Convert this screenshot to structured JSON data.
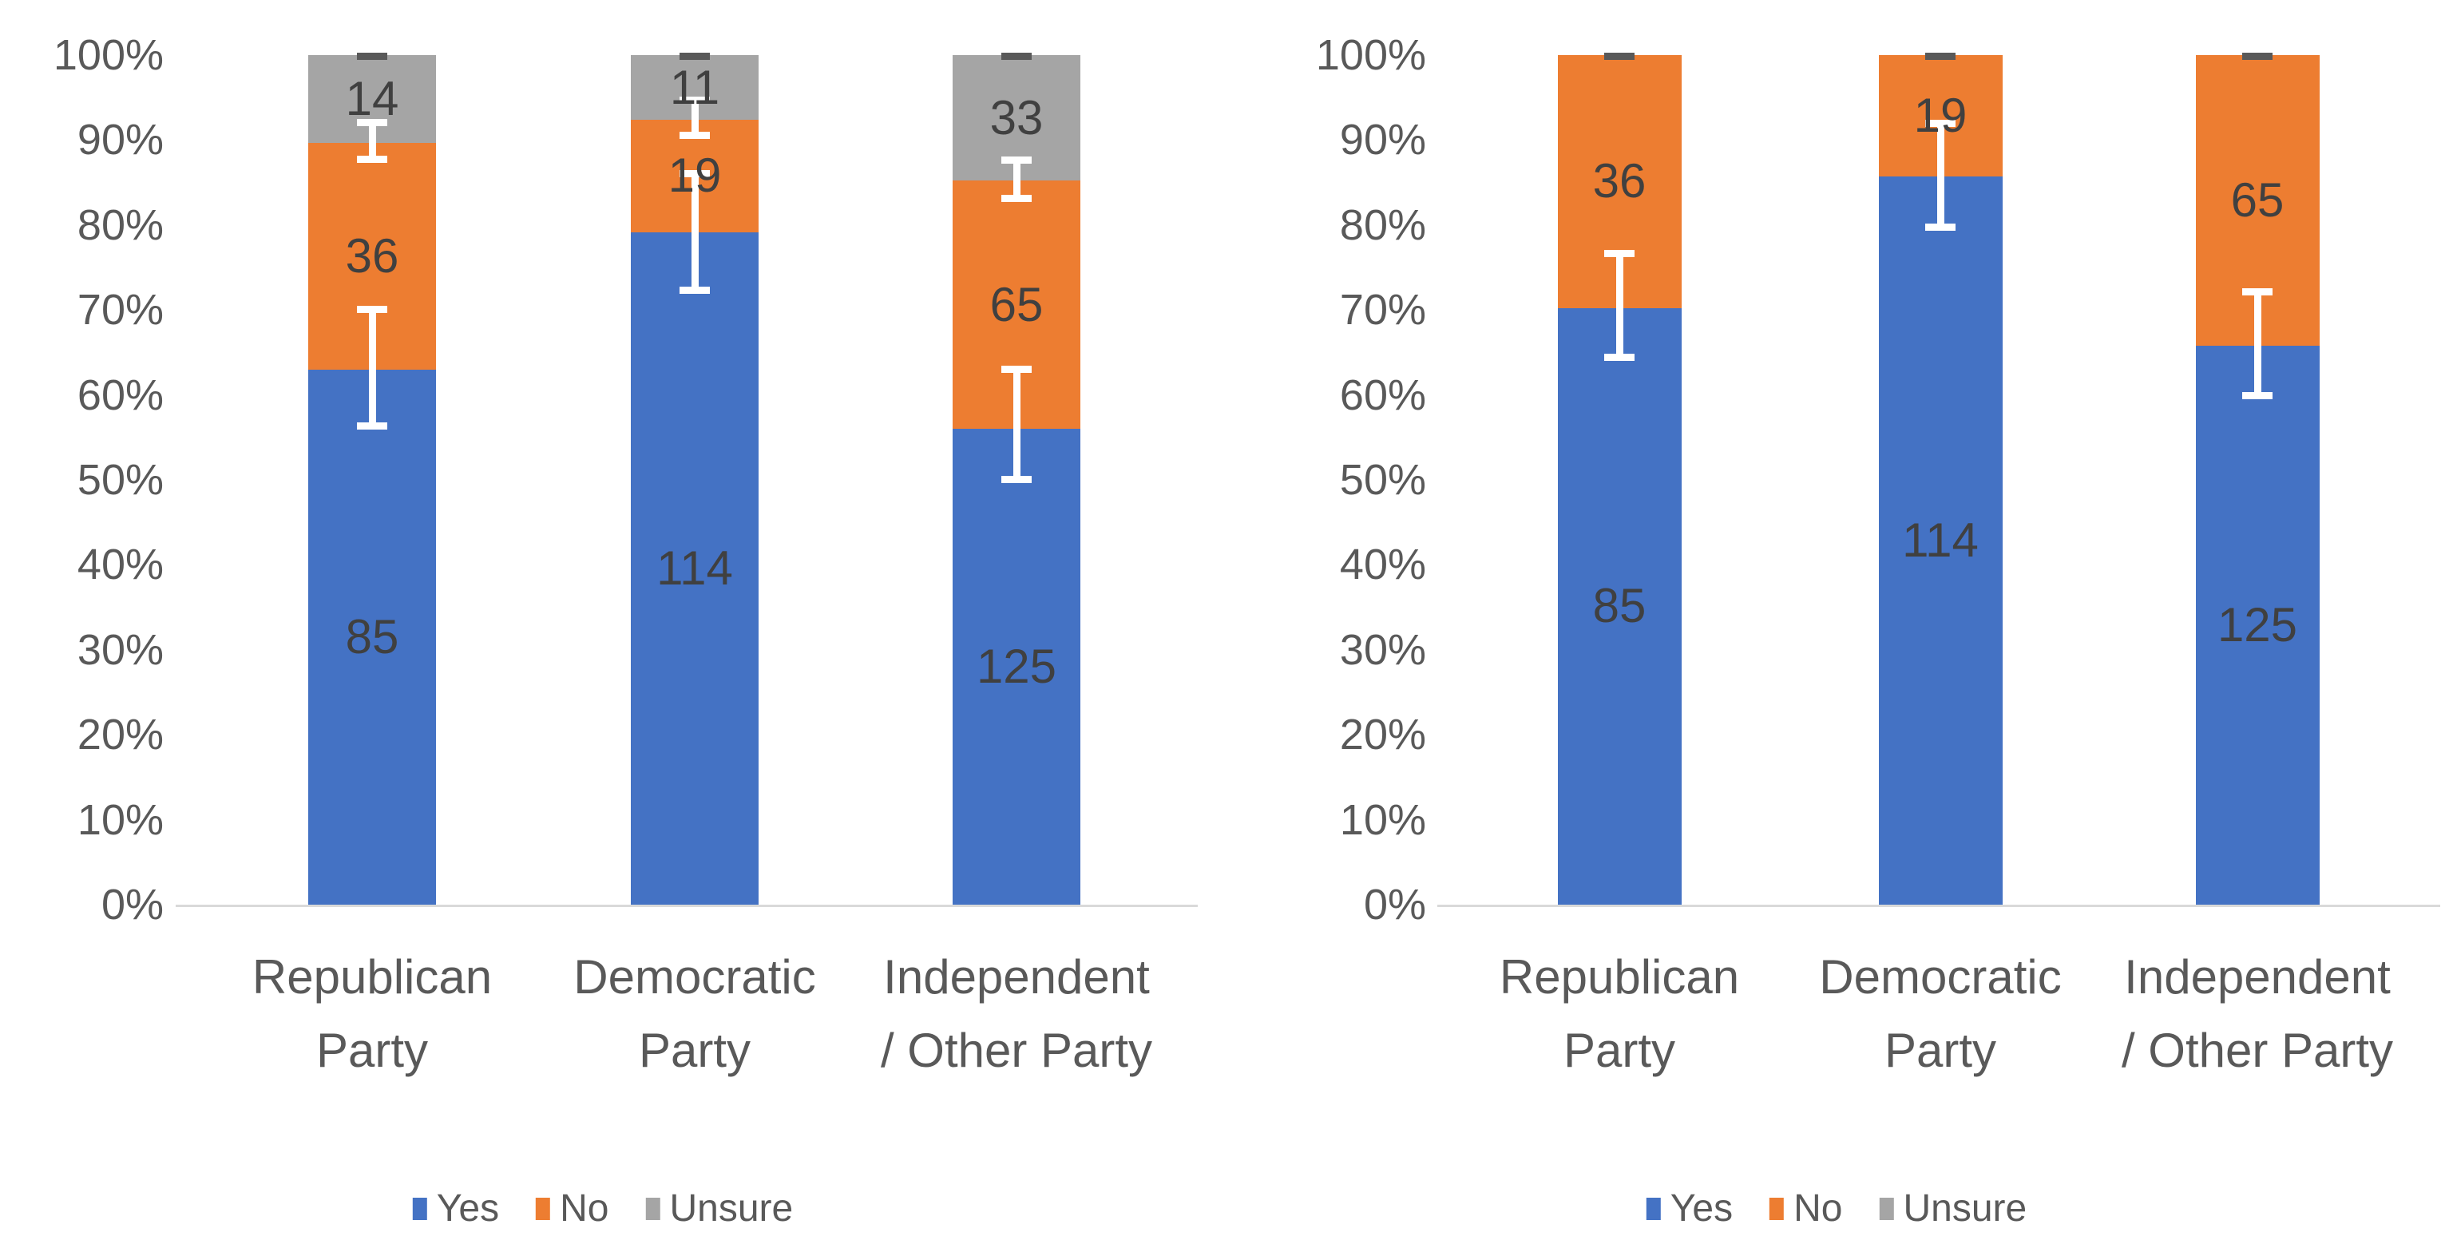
{
  "page": {
    "background": "#FFFFFF"
  },
  "chart_data": [
    {
      "type": "bar",
      "variant": "100%-stacked-column",
      "title": "",
      "ylim": [
        0,
        100
      ],
      "grid": false,
      "legend_position": "bottom",
      "y_ticks": [
        "0%",
        "10%",
        "20%",
        "30%",
        "40%",
        "50%",
        "60%",
        "70%",
        "80%",
        "90%",
        "100%"
      ],
      "categories": [
        {
          "label": "Republican Party",
          "lines": [
            "Republican",
            "Party"
          ]
        },
        {
          "label": "Democratic Party",
          "lines": [
            "Democratic",
            "Party"
          ]
        },
        {
          "label": "Independent / Other Party",
          "lines": [
            "Independent",
            "/ Other Party"
          ]
        }
      ],
      "series": [
        {
          "name": "Yes",
          "color": "#4472C4",
          "counts": [
            85,
            114,
            125
          ],
          "labels": [
            "85",
            "114",
            "125"
          ],
          "pct": [
            62.96,
            79.17,
            56.05
          ]
        },
        {
          "name": "No",
          "color": "#ED7D31",
          "counts": [
            36,
            19,
            65
          ],
          "labels": [
            "36",
            "19",
            "65"
          ],
          "pct": [
            26.67,
            13.19,
            29.15
          ]
        },
        {
          "name": "Unsure",
          "color": "#A5A5A5",
          "counts": [
            14,
            11,
            33
          ],
          "labels": [
            "14",
            "11",
            "33"
          ],
          "pct": [
            10.37,
            7.64,
            14.8
          ]
        }
      ],
      "error_bars": {
        "color": "#FFFFFF",
        "top_dash_color": "#595959",
        "spans_pct": [
          [
            [
              56.4,
              70.1
            ],
            [
              87.8,
              92.1
            ]
          ],
          [
            [
              72.4,
              86.1
            ],
            [
              90.6,
              94.7
            ]
          ],
          [
            [
              50.1,
              63.1
            ],
            [
              83.2,
              87.7
            ]
          ]
        ],
        "top_dash_pct": [
          100,
          100,
          100
        ]
      }
    },
    {
      "type": "bar",
      "variant": "100%-stacked-column",
      "title": "",
      "ylim": [
        0,
        100
      ],
      "grid": false,
      "legend_position": "bottom",
      "y_ticks": [
        "0%",
        "10%",
        "20%",
        "30%",
        "40%",
        "50%",
        "60%",
        "70%",
        "80%",
        "90%",
        "100%"
      ],
      "categories": [
        {
          "label": "Republican Party",
          "lines": [
            "Republican",
            "Party"
          ]
        },
        {
          "label": "Democratic Party",
          "lines": [
            "Democratic",
            "Party"
          ]
        },
        {
          "label": "Independent / Other Party",
          "lines": [
            "Independent",
            "/ Other Party"
          ]
        }
      ],
      "series": [
        {
          "name": "Yes",
          "color": "#4472C4",
          "counts": [
            85,
            114,
            125
          ],
          "labels": [
            "85",
            "114",
            "125"
          ],
          "pct": [
            70.25,
            85.71,
            65.79
          ]
        },
        {
          "name": "No",
          "color": "#ED7D31",
          "counts": [
            36,
            19,
            65
          ],
          "labels": [
            "36",
            "19",
            "65"
          ],
          "pct": [
            29.75,
            14.29,
            34.21
          ]
        },
        {
          "name": "Unsure",
          "color": "#A5A5A5",
          "counts": [
            0,
            0,
            0
          ],
          "labels": null,
          "pct": [
            0,
            0,
            0
          ]
        }
      ],
      "error_bars": {
        "color": "#FFFFFF",
        "top_dash_color": "#595959",
        "spans_pct": [
          [
            [
              64.5,
              76.7
            ]
          ],
          [
            [
              79.8,
              92.0
            ]
          ],
          [
            [
              60.0,
              72.2
            ]
          ]
        ],
        "top_dash_pct": [
          100,
          100,
          100
        ]
      }
    }
  ]
}
